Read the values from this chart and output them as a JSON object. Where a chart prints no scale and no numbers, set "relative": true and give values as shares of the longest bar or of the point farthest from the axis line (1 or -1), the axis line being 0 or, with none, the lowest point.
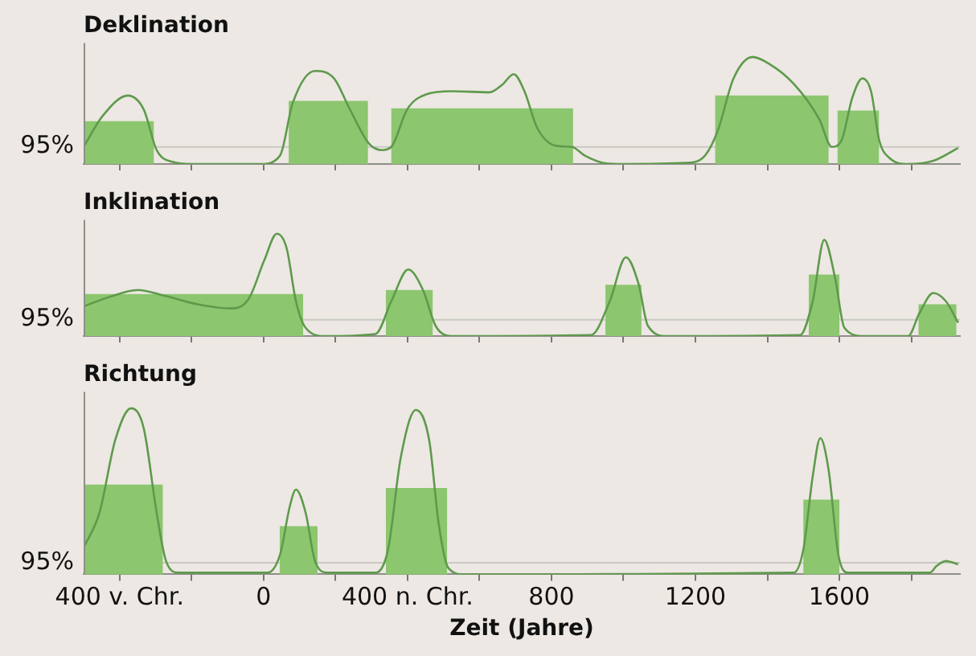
{
  "chart_data": [
    {
      "type": "line",
      "title": "Deklination",
      "relative": true,
      "tick_labels": false,
      "xlim": [
        -500,
        1935
      ],
      "xticks": [
        {
          "value": -400,
          "label": null
        },
        {
          "value": -200,
          "label": null
        },
        {
          "value": 0,
          "label": null
        },
        {
          "value": 200,
          "label": null
        },
        {
          "value": 400,
          "label": null
        },
        {
          "value": 600,
          "label": null
        },
        {
          "value": 800,
          "label": null
        },
        {
          "value": 1000,
          "label": null
        },
        {
          "value": 1200,
          "label": null
        },
        {
          "value": 1400,
          "label": null
        },
        {
          "value": 1600,
          "label": null
        },
        {
          "value": 1800,
          "label": null
        }
      ],
      "ref_lines": [
        {
          "axis": "y",
          "value": 0.16,
          "color": "#c9c9c4"
        }
      ],
      "annotations": [
        "95%"
      ],
      "series": [
        {
          "type": "histogram",
          "color": "#8cc66f",
          "bins": [
            -500,
            -305,
            70,
            290,
            355,
            860,
            1255,
            1570,
            1595,
            1710
          ],
          "values": [
            0.4,
            0,
            0.59,
            0,
            0.52,
            0,
            0.64,
            0,
            0.5
          ]
        },
        {
          "type": "line",
          "color": "#5e9a4c",
          "x": [
            -500,
            -447,
            -377,
            -333,
            -297,
            -253,
            -200,
            -7,
            46,
            81,
            143,
            196,
            240,
            293,
            328,
            355,
            399,
            451,
            522,
            628,
            663,
            695,
            725,
            760,
            813,
            857,
            892,
            945,
            998,
            1174,
            1227,
            1262,
            1306,
            1359,
            1403,
            1473,
            1544,
            1579,
            1606,
            1636,
            1664,
            1688,
            1711,
            1738,
            1791,
            1861,
            1930
          ],
          "values": [
            0.16,
            0.45,
            0.64,
            0.51,
            0.13,
            0.02,
            0,
            0,
            0.08,
            0.57,
            0.87,
            0.8,
            0.51,
            0.19,
            0.13,
            0.16,
            0.51,
            0.65,
            0.68,
            0.67,
            0.74,
            0.84,
            0.68,
            0.34,
            0.17,
            0.16,
            0.08,
            0.01,
            0,
            0.01,
            0.08,
            0.31,
            0.8,
            1.0,
            0.94,
            0.75,
            0.42,
            0.16,
            0.22,
            0.62,
            0.8,
            0.68,
            0.22,
            0.06,
            0,
            0.03,
            0.15
          ]
        }
      ]
    },
    {
      "type": "line",
      "title": "Inklination",
      "relative": true,
      "tick_labels": false,
      "xlim": [
        -500,
        1935
      ],
      "xticks": [
        {
          "value": -400,
          "label": null
        },
        {
          "value": -200,
          "label": null
        },
        {
          "value": 0,
          "label": null
        },
        {
          "value": 200,
          "label": null
        },
        {
          "value": 400,
          "label": null
        },
        {
          "value": 600,
          "label": null
        },
        {
          "value": 800,
          "label": null
        },
        {
          "value": 1000,
          "label": null
        },
        {
          "value": 1200,
          "label": null
        },
        {
          "value": 1400,
          "label": null
        },
        {
          "value": 1600,
          "label": null
        },
        {
          "value": 1800,
          "label": null
        }
      ],
      "ref_lines": [
        {
          "axis": "y",
          "value": 0.16,
          "color": "#c9c9c4"
        }
      ],
      "annotations": [
        "95%"
      ],
      "series": [
        {
          "type": "histogram",
          "color": "#8cc66f",
          "bins": [
            -500,
            110,
            340,
            470,
            950,
            1050,
            1515,
            1600,
            1820,
            1925
          ],
          "values": [
            0.41,
            0,
            0.45,
            0,
            0.5,
            0,
            0.6,
            0,
            0.31
          ]
        },
        {
          "type": "line",
          "color": "#5e9a4c",
          "x": [
            -500,
            -430,
            -350,
            -271,
            -183,
            -95,
            -42,
            2,
            37,
            64,
            90,
            117,
            170,
            311,
            355,
            402,
            443,
            478,
            522,
            910,
            962,
            1007,
            1042,
            1068,
            1121,
            1491,
            1526,
            1558,
            1588,
            1614,
            1667,
            1791,
            1822,
            1861,
            1896,
            1930
          ],
          "values": [
            0.29,
            0.38,
            0.45,
            0.39,
            0.31,
            0.27,
            0.36,
            0.74,
            1.0,
            0.86,
            0.34,
            0.08,
            0,
            0.02,
            0.34,
            0.65,
            0.45,
            0.1,
            0,
            0.01,
            0.34,
            0.77,
            0.51,
            0.1,
            0,
            0.01,
            0.34,
            0.94,
            0.57,
            0.08,
            0,
            0,
            0.22,
            0.42,
            0.34,
            0.13
          ]
        }
      ]
    },
    {
      "type": "line",
      "title": "Richtung",
      "xlabel": "Zeit (Jahre)",
      "relative": true,
      "tick_labels": "x",
      "xlim": [
        -500,
        1935
      ],
      "xticks": [
        {
          "value": -400,
          "label": "400 v. Chr."
        },
        {
          "value": -200,
          "label": null
        },
        0,
        {
          "value": 200,
          "label": null
        },
        {
          "value": 400,
          "label": "400 n. Chr."
        },
        {
          "value": 600,
          "label": null
        },
        800,
        {
          "value": 1000,
          "label": null
        },
        1200,
        {
          "value": 1400,
          "label": null
        },
        1600,
        {
          "value": 1800,
          "label": null
        }
      ],
      "ref_lines": [
        {
          "axis": "y",
          "value": 0.07,
          "color": "#c9c9c4"
        }
      ],
      "annotations": [
        "95%"
      ],
      "series": [
        {
          "type": "histogram",
          "color": "#8cc66f",
          "bins": [
            -500,
            -280,
            45,
            150,
            340,
            510,
            1500,
            1600
          ],
          "values": [
            0.54,
            0,
            0.29,
            0,
            0.52,
            0,
            0.45
          ]
        },
        {
          "type": "line",
          "color": "#5e9a4c",
          "x": [
            -500,
            -456,
            -412,
            -368,
            -333,
            -297,
            -271,
            -236,
            11,
            46,
            73,
            90,
            117,
            143,
            178,
            311,
            346,
            381,
            423,
            460,
            487,
            513,
            557,
            1473,
            1500,
            1526,
            1547,
            1570,
            1597,
            1623,
            1852,
            1870,
            1896,
            1930
          ],
          "values": [
            0.16,
            0.37,
            0.81,
            1.0,
            0.88,
            0.37,
            0.08,
            0.01,
            0.01,
            0.12,
            0.41,
            0.51,
            0.37,
            0.08,
            0.01,
            0.01,
            0.15,
            0.7,
            0.99,
            0.81,
            0.3,
            0.04,
            0,
            0.01,
            0.15,
            0.59,
            0.82,
            0.63,
            0.12,
            0.01,
            0.01,
            0.05,
            0.08,
            0.06
          ]
        }
      ]
    }
  ]
}
